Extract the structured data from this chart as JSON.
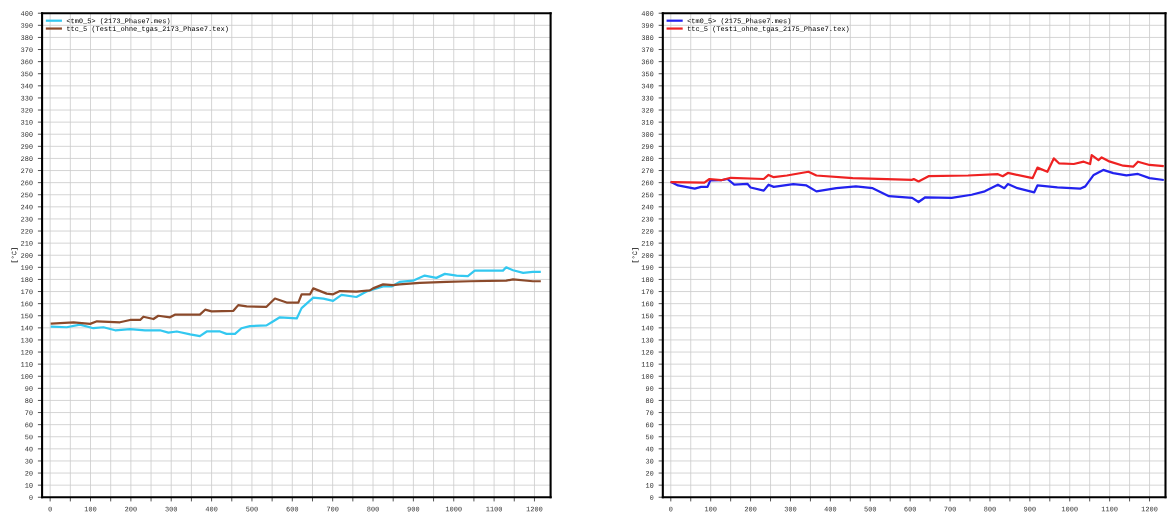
{
  "chart_data": [
    {
      "type": "line",
      "ylabel": "[°C]",
      "xlim": [
        -20,
        1240
      ],
      "ylim": [
        0,
        400
      ],
      "grid": true,
      "legend": "top left",
      "marker": "none",
      "line_style": "solid",
      "xticks": [
        0,
        {
          "value": 50,
          "label": null
        },
        100,
        {
          "value": 150,
          "label": null
        },
        200,
        {
          "value": 250,
          "label": null
        },
        300,
        {
          "value": 350,
          "label": null
        },
        400,
        {
          "value": 450,
          "label": null
        },
        500,
        {
          "value": 550,
          "label": null
        },
        600,
        {
          "value": 650,
          "label": null
        },
        700,
        {
          "value": 750,
          "label": null
        },
        800,
        {
          "value": 850,
          "label": null
        },
        900,
        {
          "value": 950,
          "label": null
        },
        1000,
        {
          "value": 1050,
          "label": null
        },
        1100,
        {
          "value": 1150,
          "label": null
        },
        1200
      ],
      "yticks": [
        0,
        10,
        20,
        30,
        40,
        50,
        60,
        70,
        80,
        90,
        100,
        110,
        120,
        130,
        140,
        150,
        160,
        170,
        180,
        190,
        200,
        210,
        220,
        230,
        240,
        250,
        260,
        270,
        280,
        290,
        300,
        310,
        320,
        330,
        340,
        350,
        360,
        370,
        380,
        390,
        400
      ],
      "series": [
        {
          "name": "<tm0_5> (2173_Phase7.mes)",
          "color": "#33c8f0",
          "x": [
            4,
            41,
            74,
            107,
            132,
            161,
            198,
            235,
            272,
            293,
            314,
            347,
            371,
            388,
            421,
            437,
            458,
            474,
            495,
            536,
            553,
            569,
            611,
            623,
            652,
            677,
            701,
            722,
            759,
            784,
            825,
            846,
            866,
            899,
            928,
            957,
            978,
            1007,
            1035,
            1052,
            1122,
            1130,
            1147,
            1172,
            1196,
            1213
          ],
          "values": [
            141,
            140.5,
            142.7,
            139.7,
            140.5,
            138,
            139,
            138,
            138,
            136,
            137,
            134.6,
            133.2,
            137,
            137,
            135,
            135,
            139.7,
            141.4,
            142,
            145.5,
            148.7,
            147.8,
            156.3,
            165,
            164.2,
            162.3,
            167.2,
            165.5,
            170,
            174.2,
            174.2,
            178,
            179,
            183.2,
            181.3,
            184.6,
            183.2,
            182.7,
            187.3,
            187.3,
            190,
            187.6,
            185.4,
            186.2,
            186.2
          ]
        },
        {
          "name": "ttc_5 (Test1_ohne_tgas_2173_Phase7.tex)",
          "color": "#8b4a2b",
          "x": [
            4,
            58,
            99,
            116,
            173,
            198,
            223,
            231,
            256,
            268,
            297,
            309,
            371,
            384,
            400,
            454,
            466,
            487,
            536,
            557,
            586,
            615,
            623,
            644,
            652,
            685,
            701,
            718,
            759,
            792,
            800,
            825,
            850,
            866,
            916,
            982,
            1040,
            1130,
            1147,
            1196,
            1213
          ],
          "values": [
            143.5,
            144.6,
            143.3,
            145.4,
            144.6,
            146.5,
            146.5,
            149.2,
            147.3,
            150,
            148.7,
            150.9,
            150.9,
            155,
            153.6,
            154.1,
            158.8,
            157.7,
            157.4,
            164.2,
            160.9,
            160.9,
            167.7,
            167.7,
            172.6,
            168.3,
            167.7,
            170.4,
            170,
            171,
            172.6,
            175.9,
            175.3,
            175.9,
            177.2,
            178,
            178.5,
            179,
            180,
            178.5,
            178.5
          ]
        }
      ]
    },
    {
      "type": "line",
      "ylabel": "[°C]",
      "xlim": [
        -20,
        1240
      ],
      "ylim": [
        0,
        400
      ],
      "grid": true,
      "legend": "top left",
      "marker": "none",
      "line_style": "solid",
      "xticks": [
        0,
        {
          "value": 50,
          "label": null
        },
        100,
        {
          "value": 150,
          "label": null
        },
        200,
        {
          "value": 250,
          "label": null
        },
        300,
        {
          "value": 350,
          "label": null
        },
        400,
        {
          "value": 450,
          "label": null
        },
        500,
        {
          "value": 550,
          "label": null
        },
        600,
        {
          "value": 650,
          "label": null
        },
        700,
        {
          "value": 750,
          "label": null
        },
        800,
        {
          "value": 850,
          "label": null
        },
        900,
        {
          "value": 950,
          "label": null
        },
        1000,
        {
          "value": 1050,
          "label": null
        },
        1100,
        {
          "value": 1150,
          "label": null
        },
        1200
      ],
      "yticks": [
        0,
        10,
        20,
        30,
        40,
        50,
        60,
        70,
        80,
        90,
        100,
        110,
        120,
        130,
        140,
        150,
        160,
        170,
        180,
        190,
        200,
        210,
        220,
        230,
        240,
        250,
        260,
        270,
        280,
        290,
        300,
        310,
        320,
        330,
        340,
        350,
        360,
        370,
        380,
        390,
        400
      ],
      "series": [
        {
          "name": "<tm0_5> (2175_Phase7.mes)",
          "color": "#2222ee",
          "x": [
            2,
            18,
            60,
            76,
            92,
            99,
            126,
            142,
            159,
            192,
            200,
            233,
            245,
            258,
            307,
            340,
            365,
            415,
            464,
            506,
            547,
            605,
            621,
            638,
            704,
            754,
            787,
            820,
            836,
            845,
            869,
            911,
            919,
            969,
            1026,
            1039,
            1060,
            1084,
            1109,
            1142,
            1171,
            1200,
            1233
          ],
          "values": [
            260.4,
            257.7,
            255,
            256.5,
            256.5,
            261.8,
            262,
            263,
            258.3,
            259,
            256,
            253.4,
            258.3,
            256.5,
            258.8,
            257.7,
            252.8,
            255.4,
            256.9,
            255.4,
            248.8,
            247.4,
            244,
            247.9,
            247.4,
            250,
            252.8,
            258.3,
            255.4,
            258.8,
            255.4,
            252,
            257.7,
            256,
            255,
            256.9,
            266.4,
            270.5,
            267.9,
            266,
            267.2,
            263.7,
            262.3
          ]
        },
        {
          "name": "ttc_5 (Test1_ohne_tgas_2175_Phase7.tex)",
          "color": "#ee2222",
          "x": [
            2,
            84,
            97,
            126,
            150,
            233,
            245,
            258,
            291,
            345,
            365,
            456,
            605,
            609,
            621,
            646,
            745,
            820,
            832,
            845,
            907,
            919,
            944,
            960,
            973,
            1010,
            1035,
            1051,
            1055,
            1072,
            1080,
            1097,
            1134,
            1159,
            1171,
            1200,
            1233
          ],
          "values": [
            260.4,
            260,
            263,
            262,
            264,
            263,
            266.4,
            264.5,
            265.9,
            269,
            265.9,
            263.7,
            262.3,
            263,
            261,
            265.3,
            265.9,
            267,
            265.3,
            268,
            263.7,
            272.4,
            269,
            280,
            276,
            275.4,
            277.3,
            275.4,
            282.7,
            278.6,
            280.8,
            277.8,
            274,
            273.2,
            277.3,
            274.6,
            273.7
          ]
        }
      ]
    }
  ]
}
